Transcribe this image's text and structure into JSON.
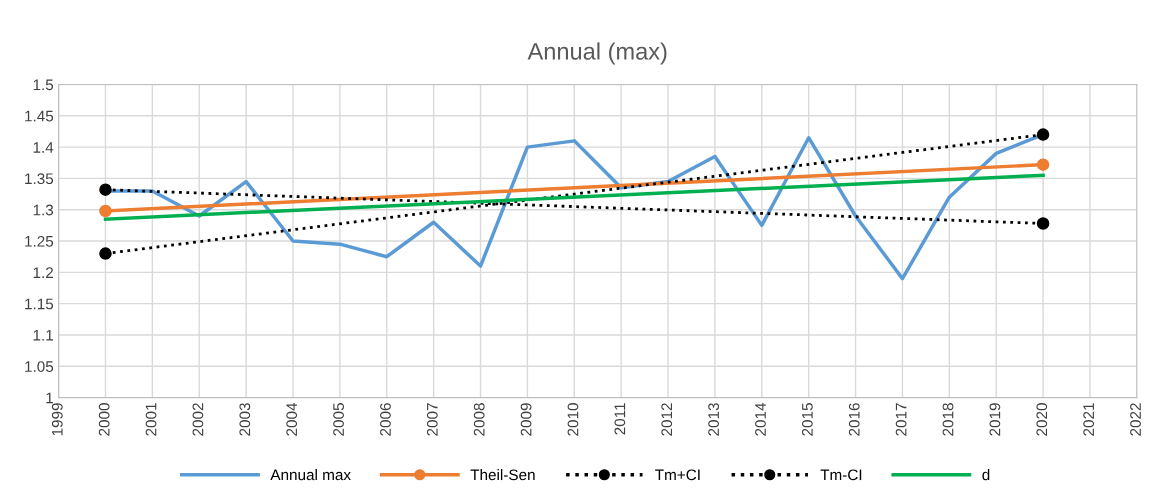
{
  "chart_data": {
    "type": "line",
    "title": "Annual (max)",
    "xlim": [
      1999,
      2022
    ],
    "xticks": [
      1999,
      2000,
      2001,
      2002,
      2003,
      2004,
      2005,
      2006,
      2007,
      2008,
      2009,
      2010,
      2011,
      2012,
      2013,
      2014,
      2015,
      2016,
      2017,
      2018,
      2019,
      2020,
      2021,
      2022
    ],
    "ylim": [
      1,
      1.5
    ],
    "yticks": [
      1,
      1.05,
      1.1,
      1.15,
      1.2,
      1.25,
      1.3,
      1.35,
      1.4,
      1.45,
      1.5
    ],
    "grid": true,
    "legend": "bottom",
    "series": [
      {
        "name": "Annual max",
        "color": "#5b9bd5",
        "marker": "none",
        "line_style": "solid",
        "x": [
          2000,
          2001,
          2002,
          2003,
          2004,
          2005,
          2006,
          2007,
          2008,
          2009,
          2010,
          2011,
          2012,
          2013,
          2014,
          2015,
          2016,
          2017,
          2018,
          2019,
          2020
        ],
        "values": [
          1.33,
          1.33,
          1.29,
          1.345,
          1.25,
          1.245,
          1.225,
          1.28,
          1.21,
          1.4,
          1.41,
          1.335,
          1.345,
          1.385,
          1.275,
          1.415,
          1.29,
          1.19,
          1.32,
          1.39,
          1.42
        ]
      },
      {
        "name": "Theil-Sen",
        "color": "#ed7d31",
        "marker": "circle",
        "line_style": "solid",
        "x": [
          2000,
          2020
        ],
        "values": [
          1.298,
          1.372
        ]
      },
      {
        "name": "Tm+CI",
        "color": "#000000",
        "marker": "circle",
        "line_style": "dotted",
        "x": [
          2000,
          2020
        ],
        "values": [
          1.23,
          1.42
        ]
      },
      {
        "name": "Tm-CI",
        "color": "#000000",
        "marker": "circle",
        "line_style": "dotted",
        "x": [
          2000,
          2020
        ],
        "values": [
          1.332,
          1.278
        ]
      },
      {
        "name": "d",
        "color": "#00b050",
        "marker": "none",
        "line_style": "solid",
        "x": [
          2000,
          2020
        ],
        "values": [
          1.285,
          1.355
        ]
      }
    ]
  }
}
